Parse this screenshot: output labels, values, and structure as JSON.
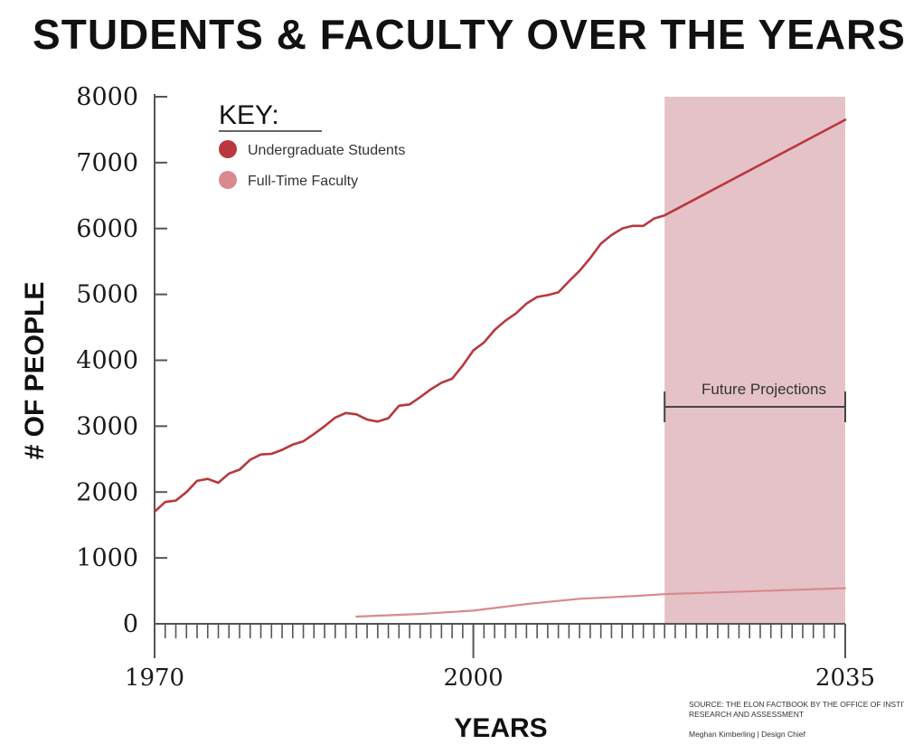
{
  "title": "STUDENTS & FACULTY OVER THE YEARS",
  "colors": {
    "students": "#b8383d",
    "faculty": "#d9898f",
    "projection_band": "#e5c2c7",
    "axis": "#555555",
    "bracket": "#444444"
  },
  "legend": {
    "title": "KEY:",
    "items": [
      {
        "label": "Undergraduate Students",
        "color": "#b8383d"
      },
      {
        "label": "Full-Time Faculty",
        "color": "#d9898f"
      }
    ]
  },
  "projection_label": "Future Projections",
  "source": {
    "line1": "SOURCE: THE ELON FACTBOOK BY THE OFFICE OF INSTITUTIONAL",
    "line2": "RESEARCH AND ASSESSMENT"
  },
  "credit": "Meghan Kimberling | Design Chief",
  "chart_data": {
    "type": "line",
    "title": "STUDENTS & FACULTY OVER THE YEARS",
    "xlabel": "YEARS",
    "ylabel": "# OF PEOPLE",
    "xlim": [
      1970,
      2035
    ],
    "ylim": [
      0,
      8000
    ],
    "x_tick_labels": [
      "1970",
      "2000",
      "2035"
    ],
    "x_ticks": [
      1970,
      2000,
      2035
    ],
    "y_tick_labels": [
      "0",
      "1000",
      "2000",
      "3000",
      "4000",
      "5000",
      "6000",
      "7000",
      "8000"
    ],
    "y_ticks": [
      0,
      1000,
      2000,
      3000,
      4000,
      5000,
      6000,
      7000,
      8000
    ],
    "grid": false,
    "legend_position": "top-left",
    "projection_range": [
      2018,
      2035
    ],
    "series": [
      {
        "name": "Undergraduate Students",
        "x": [
          1970,
          1971,
          1972,
          1973,
          1974,
          1975,
          1976,
          1977,
          1978,
          1979,
          1980,
          1981,
          1982,
          1983,
          1984,
          1985,
          1986,
          1987,
          1988,
          1989,
          1990,
          1991,
          1992,
          1993,
          1994,
          1995,
          1996,
          1997,
          1998,
          1999,
          2000,
          2001,
          2002,
          2003,
          2004,
          2005,
          2006,
          2007,
          2008,
          2009,
          2010,
          2011,
          2012,
          2013,
          2014,
          2015,
          2016,
          2017,
          2018,
          2035
        ],
        "y": [
          1700,
          1850,
          1870,
          2000,
          2170,
          2200,
          2140,
          2280,
          2340,
          2490,
          2570,
          2580,
          2640,
          2720,
          2770,
          2880,
          3000,
          3130,
          3200,
          3180,
          3100,
          3070,
          3120,
          3310,
          3330,
          3440,
          3560,
          3660,
          3720,
          3920,
          4150,
          4270,
          4460,
          4600,
          4710,
          4860,
          4960,
          4990,
          5030,
          5200,
          5360,
          5550,
          5770,
          5900,
          6000,
          6040,
          6040,
          6150,
          6200,
          7650
        ]
      },
      {
        "name": "Full-Time Faculty",
        "x": [
          1989,
          1995,
          2000,
          2005,
          2010,
          2015,
          2018,
          2035
        ],
        "y": [
          110,
          150,
          200,
          300,
          380,
          420,
          450,
          540
        ]
      }
    ]
  }
}
